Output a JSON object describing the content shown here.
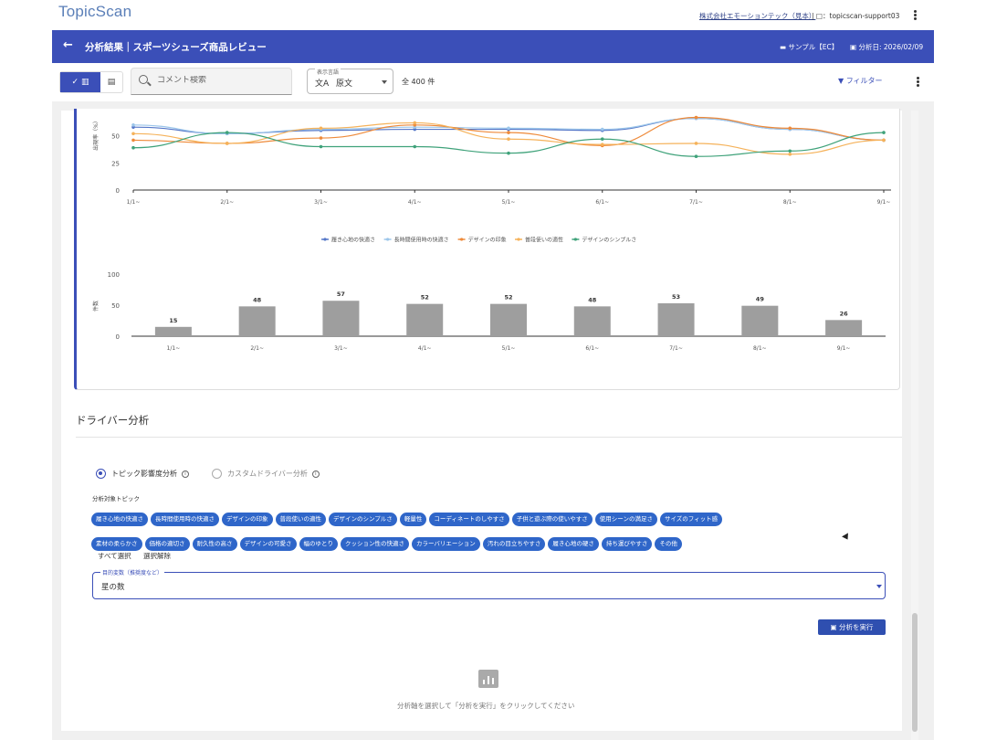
{
  "app": {
    "logo": "TopicScan",
    "company": "株式会社エモーションテック（見本）",
    "user": "| □：topicscan-support03"
  },
  "header": {
    "back_icon": "arrow-back-icon",
    "title": "分析結果｜スポーツシューズ商品レビュー",
    "sample": "サンプル【EC】",
    "date": "分析日: 2026/02/09"
  },
  "toolbar": {
    "search_placeholder": "コメント検索",
    "lang_label": "表示言語",
    "lang_value": "原文",
    "total": "全 400 件",
    "filter": "フィルター"
  },
  "chart_data": [
    {
      "type": "line",
      "x": [
        "1/1~",
        "2/1~",
        "3/1~",
        "4/1~",
        "5/1~",
        "6/1~",
        "7/1~",
        "8/1~",
        "9/1~"
      ],
      "ylabel": "出現率（%）",
      "ylim": [
        0,
        75
      ],
      "yticks": [
        0,
        25,
        50
      ],
      "legend_position": "bottom",
      "series": [
        {
          "name": "履き心地の快適さ",
          "color": "#5577c8",
          "values": [
            58,
            52,
            55,
            56,
            56,
            55,
            66,
            56,
            46
          ]
        },
        {
          "name": "長時間使用時の快適さ",
          "color": "#9cc6ea",
          "values": [
            60,
            52,
            56,
            58,
            57,
            56,
            66,
            56,
            46
          ]
        },
        {
          "name": "デザインの印象",
          "color": "#ee8a3a",
          "values": [
            46,
            43,
            48,
            60,
            53,
            41,
            67,
            57,
            46
          ]
        },
        {
          "name": "普段使いの適性",
          "color": "#f5b25a",
          "values": [
            52,
            43,
            57,
            62,
            47,
            42,
            43,
            33,
            46
          ]
        },
        {
          "name": "デザインのシンプルさ",
          "color": "#3fa27a",
          "values": [
            39,
            53,
            40,
            40,
            34,
            47,
            31,
            36,
            53
          ]
        }
      ]
    },
    {
      "type": "bar",
      "categories": [
        "1/1~",
        "2/1~",
        "3/1~",
        "4/1~",
        "5/1~",
        "6/1~",
        "7/1~",
        "8/1~",
        "9/1~"
      ],
      "values": [
        15,
        48,
        57,
        52,
        52,
        48,
        53,
        49,
        26
      ],
      "ylabel": "件数",
      "ylim": [
        0,
        100
      ],
      "yticks": [
        0,
        50,
        100
      ],
      "color": "#9e9e9e"
    }
  ],
  "driver": {
    "title": "ドライバー分析",
    "radio_topic": "トピック影響度分析",
    "radio_custom": "カスタムドライバー分析",
    "topic_label": "分析対象トピック",
    "chips": [
      "履き心地の快適さ",
      "長時間使用時の快適さ",
      "デザインの印象",
      "普段使いの適性",
      "デザインのシンプルさ",
      "軽量性",
      "コーディネートのしやすさ",
      "子供と遊ぶ際の使いやすさ",
      "使用シーンの満足さ",
      "サイズのフィット感",
      "素材の柔らかさ",
      "価格の適切さ",
      "耐久性の高さ",
      "デザインの可愛さ",
      "幅のゆとり",
      "クッション性の快適さ",
      "カラーバリエーション",
      "汚れの目立ちやすさ",
      "履き心地の硬さ",
      "持ち運びやすさ",
      "その他"
    ],
    "select_all": "すべて選択",
    "clear_all": "選択解除",
    "target_label": "目的変数（推奨度など）",
    "target_value": "星の数",
    "run_button": "分析を実行",
    "empty_message": "分析軸を選択して「分析を実行」をクリックしてください"
  }
}
